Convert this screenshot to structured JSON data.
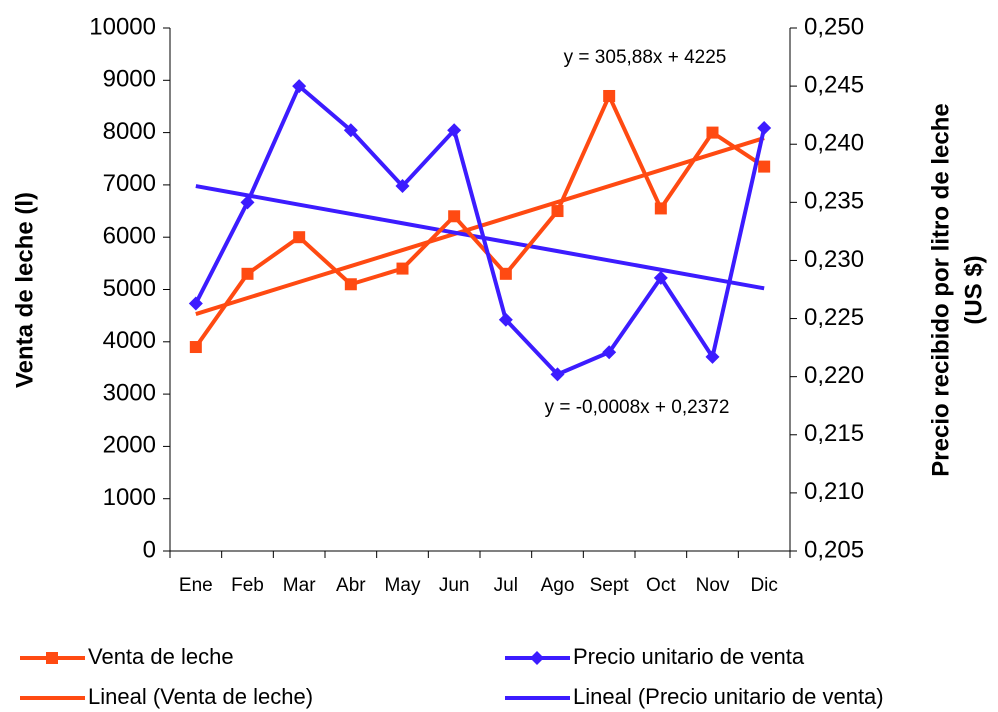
{
  "chart_data": {
    "type": "line",
    "categories": [
      "Ene",
      "Feb",
      "Mar",
      "Abr",
      "May",
      "Jun",
      "Jul",
      "Ago",
      "Sept",
      "Oct",
      "Nov",
      "Dic"
    ],
    "ylabel": "Venta de leche (l)",
    "y2label": [
      "Precio recibido por litro de leche",
      "(US $)"
    ],
    "ylim": [
      0,
      10000
    ],
    "yticks": [
      0,
      1000,
      2000,
      3000,
      4000,
      5000,
      6000,
      7000,
      8000,
      9000,
      10000
    ],
    "y2lim": [
      0.205,
      0.25
    ],
    "y2ticks": [
      {
        "value": 0.205,
        "label": "0,205"
      },
      {
        "value": 0.21,
        "label": "0,210"
      },
      {
        "value": 0.215,
        "label": "0,215"
      },
      {
        "value": 0.22,
        "label": "0,220"
      },
      {
        "value": 0.225,
        "label": "0,225"
      },
      {
        "value": 0.23,
        "label": "0,230"
      },
      {
        "value": 0.235,
        "label": "0,235"
      },
      {
        "value": 0.24,
        "label": "0,240"
      },
      {
        "value": 0.245,
        "label": "0,245"
      },
      {
        "value": 0.25,
        "label": "0,250"
      }
    ],
    "series": [
      {
        "name": "Venta de leche",
        "color": "#ff4a12",
        "marker": "square",
        "values": [
          3900,
          5300,
          6000,
          5100,
          5400,
          6400,
          5300,
          6500,
          8700,
          6550,
          8000,
          7350
        ]
      },
      {
        "name": "Precio unitario de venta",
        "color": "#3c1cff",
        "marker": "diamond",
        "axis": "y2",
        "values": [
          0.2263,
          0.235,
          0.245,
          0.2412,
          0.2364,
          0.2412,
          0.2249,
          0.2202,
          0.2221,
          0.2285,
          0.2217,
          0.2414
        ]
      },
      {
        "name": "Lineal (Venta de leche)",
        "color": "#ff4a12",
        "marker": "none",
        "values": [
          4531,
          4837,
          5143,
          5448,
          5754,
          6060,
          6366,
          6672,
          6978,
          7284,
          7590,
          7896
        ]
      },
      {
        "name": "Lineal (Precio unitario de venta)",
        "color": "#3c1cff",
        "marker": "none",
        "axis": "y2",
        "values": [
          0.2364,
          0.2356,
          0.2348,
          0.234,
          0.2332,
          0.2324,
          0.2316,
          0.2308,
          0.23,
          0.2292,
          0.2284,
          0.2276
        ]
      }
    ],
    "annotations": [
      "y = 305,88x + 4225",
      "y = -0,0008x + 0,2372"
    ]
  }
}
